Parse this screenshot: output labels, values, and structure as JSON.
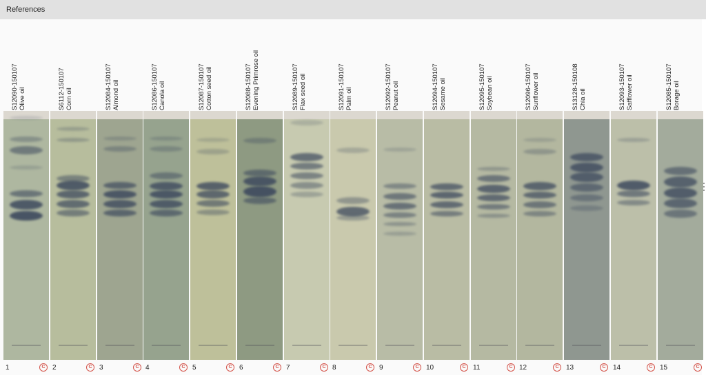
{
  "header": {
    "title": "References"
  },
  "copyright_symbol": "C",
  "lanes": [
    {
      "number": "1",
      "id": "S12090-150107",
      "name": "Olive oil"
    },
    {
      "number": "2",
      "id": "S6112-150107",
      "name": "Corn oil"
    },
    {
      "number": "3",
      "id": "S12084-150107",
      "name": "Almond oil"
    },
    {
      "number": "4",
      "id": "S12086-150107",
      "name": "Canola oil"
    },
    {
      "number": "5",
      "id": "S12087-150107",
      "name": "Cotton seed oil"
    },
    {
      "number": "6",
      "id": "S12088-150107",
      "name": "Evening Primrose oil"
    },
    {
      "number": "7",
      "id": "S12089-150107",
      "name": "Flax seed oil"
    },
    {
      "number": "8",
      "id": "S12091-150107",
      "name": "Palm oil"
    },
    {
      "number": "9",
      "id": "S12092-150107",
      "name": "Peanut oil"
    },
    {
      "number": "10",
      "id": "S12094-150107",
      "name": "Sesame oil"
    },
    {
      "number": "11",
      "id": "S12095-150107",
      "name": "Soybean oil"
    },
    {
      "number": "12",
      "id": "S12096-150107",
      "name": "Sunflower oil"
    },
    {
      "number": "13",
      "id": "S13128-150108",
      "name": "Chia oil"
    },
    {
      "number": "14",
      "id": "S12093-150107",
      "name": "Safflower oil"
    },
    {
      "number": "15",
      "id": "S12085-150107",
      "name": "Borage oil"
    }
  ],
  "colors": {
    "plate_bg": [
      "#aeb7a0",
      "#b7bd9d",
      "#9ea590",
      "#96a38e",
      "#bec09a",
      "#8e9a82",
      "#c7cab0",
      "#c9c9ad",
      "#b8bca6",
      "#b9bca4",
      "#b5b9a2",
      "#b3b79f",
      "#8f9790",
      "#bcbfa9",
      "#a3ab9c"
    ],
    "band": "#3e4a5e",
    "copyright": "#d4534a"
  }
}
